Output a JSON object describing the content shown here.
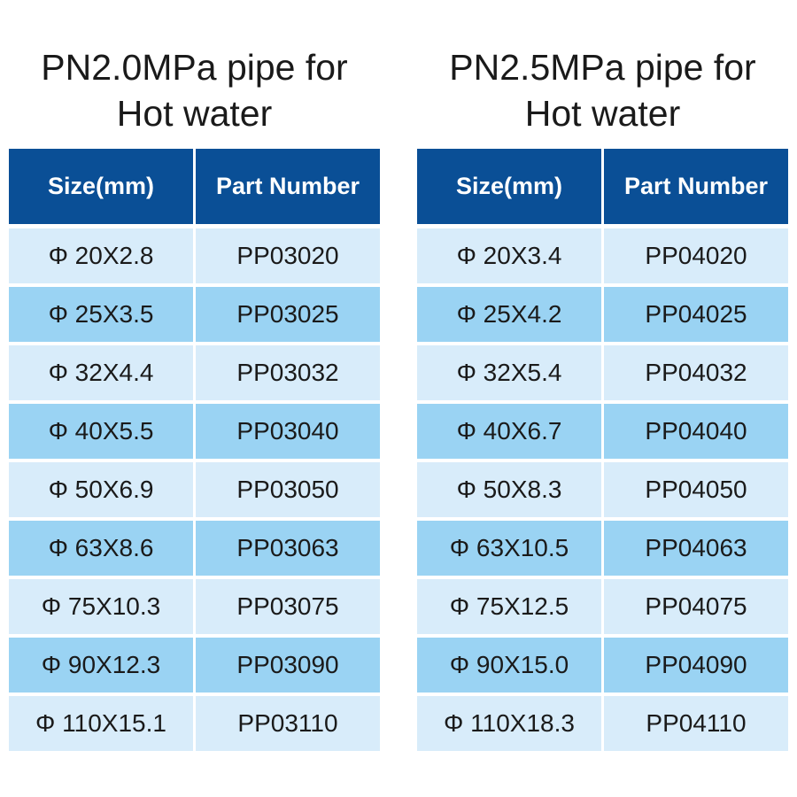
{
  "tables": [
    {
      "title": "PN2.0MPa pipe for\nHot water",
      "headers": [
        "Size(mm)",
        "Part Number"
      ],
      "rows": [
        [
          "Φ 20X2.8",
          "PP03020"
        ],
        [
          "Φ 25X3.5",
          "PP03025"
        ],
        [
          "Φ 32X4.4",
          "PP03032"
        ],
        [
          "Φ 40X5.5",
          "PP03040"
        ],
        [
          "Φ 50X6.9",
          "PP03050"
        ],
        [
          "Φ 63X8.6",
          "PP03063"
        ],
        [
          "Φ 75X10.3",
          "PP03075"
        ],
        [
          "Φ 90X12.3",
          "PP03090"
        ],
        [
          "Φ 110X15.1",
          "PP03110"
        ]
      ]
    },
    {
      "title": "PN2.5MPa pipe for\nHot water",
      "headers": [
        "Size(mm)",
        "Part Number"
      ],
      "rows": [
        [
          "Φ 20X3.4",
          "PP04020"
        ],
        [
          "Φ 25X4.2",
          "PP04025"
        ],
        [
          "Φ 32X5.4",
          "PP04032"
        ],
        [
          "Φ 40X6.7",
          "PP04040"
        ],
        [
          "Φ 50X8.3",
          "PP04050"
        ],
        [
          "Φ 63X10.5",
          "PP04063"
        ],
        [
          "Φ 75X12.5",
          "PP04075"
        ],
        [
          "Φ 90X15.0",
          "PP04090"
        ],
        [
          "Φ 110X18.3",
          "PP04110"
        ]
      ]
    }
  ],
  "colors": {
    "header": "#0a4f96",
    "row_light": "#d8ecfa",
    "row_dark": "#9ad3f3"
  }
}
